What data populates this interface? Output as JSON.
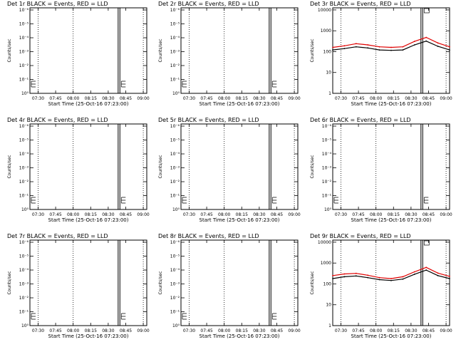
{
  "colors": {
    "events": "#000000",
    "lld": "#e00000",
    "background": "#ffffff"
  },
  "chart_data": [
    {
      "type": "line",
      "title": "Det 1r BLACK = Events, RED = LLD",
      "xlabel": "Start Time (25-Oct-16 07:23:00)",
      "ylabel": "Counts/sec",
      "yscale": "log",
      "xticks": [
        "07:30",
        "07:45",
        "08:00",
        "08:15",
        "08:30",
        "08:45",
        "09:00"
      ],
      "yticks": [
        "10⁰",
        "10⁻¹",
        "10⁻²",
        "10⁻³",
        "10⁻⁴",
        "10⁻⁵",
        "10⁻⁶"
      ],
      "series": []
    },
    {
      "type": "line",
      "title": "Det 2r BLACK = Events, RED = LLD",
      "xlabel": "Start Time (25-Oct-16 07:23:00)",
      "ylabel": "Counts/sec",
      "yscale": "log",
      "xticks": [
        "07:30",
        "07:45",
        "08:00",
        "08:15",
        "08:30",
        "08:45",
        "09:00"
      ],
      "yticks": [
        "10⁰",
        "10⁻¹",
        "10⁻²",
        "10⁻³",
        "10⁻⁴",
        "10⁻⁵",
        "10⁻⁶"
      ],
      "series": []
    },
    {
      "type": "line",
      "title": "Det 3r BLACK = Events, RED = LLD",
      "xlabel": "Start Time (25-Oct-16 07:23:00)",
      "ylabel": "Counts/sec",
      "yscale": "log",
      "xticks": [
        "07:30",
        "07:45",
        "08:00",
        "08:15",
        "08:30",
        "08:45",
        "09:00"
      ],
      "yticks": [
        "1",
        "10",
        "100",
        "1000",
        "10000"
      ],
      "series": [
        {
          "color": "lld",
          "x": [
            0,
            10,
            20,
            30,
            40,
            50,
            60,
            70,
            80,
            90,
            100
          ],
          "y": [
            160,
            190,
            240,
            210,
            170,
            160,
            170,
            310,
            480,
            260,
            170
          ]
        },
        {
          "color": "events",
          "x": [
            0,
            10,
            20,
            30,
            40,
            50,
            60,
            70,
            80,
            90,
            100
          ],
          "y": [
            120,
            140,
            170,
            150,
            120,
            115,
            120,
            210,
            320,
            180,
            120
          ]
        }
      ]
    },
    {
      "type": "line",
      "title": "Det 4r BLACK = Events, RED = LLD",
      "xlabel": "Start Time (25-Oct-16 07:23:00)",
      "ylabel": "Counts/sec",
      "yscale": "log",
      "xticks": [
        "07:30",
        "07:45",
        "08:00",
        "08:15",
        "08:30",
        "08:45",
        "09:00"
      ],
      "yticks": [
        "10⁰",
        "10⁻¹",
        "10⁻²",
        "10⁻³",
        "10⁻⁴",
        "10⁻⁵",
        "10⁻⁶"
      ],
      "series": []
    },
    {
      "type": "line",
      "title": "Det 5r BLACK = Events, RED = LLD",
      "xlabel": "Start Time (25-Oct-16 07:23:00)",
      "ylabel": "Counts/sec",
      "yscale": "log",
      "xticks": [
        "07:30",
        "07:45",
        "08:00",
        "08:15",
        "08:30",
        "08:45",
        "09:00"
      ],
      "yticks": [
        "10⁰",
        "10⁻¹",
        "10⁻²",
        "10⁻³",
        "10⁻⁴",
        "10⁻⁵",
        "10⁻⁶"
      ],
      "series": []
    },
    {
      "type": "line",
      "title": "Det 6r BLACK = Events, RED = LLD",
      "xlabel": "Start Time (25-Oct-16 07:23:00)",
      "ylabel": "Counts/sec",
      "yscale": "log",
      "xticks": [
        "07:30",
        "07:45",
        "08:00",
        "08:15",
        "08:30",
        "08:45",
        "09:00"
      ],
      "yticks": [
        "10⁰",
        "10⁻¹",
        "10⁻²",
        "10⁻³",
        "10⁻⁴",
        "10⁻⁵",
        "10⁻⁶"
      ],
      "series": []
    },
    {
      "type": "line",
      "title": "Det 7r BLACK = Events, RED = LLD",
      "xlabel": "Start Time (25-Oct-16 07:23:00)",
      "ylabel": "Counts/sec",
      "yscale": "log",
      "xticks": [
        "07:30",
        "07:45",
        "08:00",
        "08:15",
        "08:30",
        "08:45",
        "09:00"
      ],
      "yticks": [
        "10⁰",
        "10⁻¹",
        "10⁻²",
        "10⁻³",
        "10⁻⁴",
        "10⁻⁵",
        "10⁻⁶"
      ],
      "series": []
    },
    {
      "type": "line",
      "title": "Det 8r BLACK = Events, RED = LLD",
      "xlabel": "Start Time (25-Oct-16 07:23:00)",
      "ylabel": "Counts/sec",
      "yscale": "log",
      "xticks": [
        "07:30",
        "07:45",
        "08:00",
        "08:15",
        "08:30",
        "08:45",
        "09:00"
      ],
      "yticks": [
        "10⁰",
        "10⁻¹",
        "10⁻²",
        "10⁻³",
        "10⁻⁴",
        "10⁻⁵",
        "10⁻⁶"
      ],
      "series": []
    },
    {
      "type": "line",
      "title": "Det 9r BLACK = Events, RED = LLD",
      "xlabel": "Start Time (25-Oct-16 07:23:00)",
      "ylabel": "Counts/sec",
      "yscale": "log",
      "xticks": [
        "07:30",
        "07:45",
        "08:00",
        "08:15",
        "08:30",
        "08:45",
        "09:00"
      ],
      "yticks": [
        "1",
        "10",
        "100",
        "1000",
        "10000"
      ],
      "series": [
        {
          "color": "lld",
          "x": [
            0,
            10,
            20,
            30,
            40,
            50,
            60,
            70,
            80,
            90,
            100
          ],
          "y": [
            250,
            300,
            320,
            260,
            200,
            180,
            220,
            380,
            620,
            330,
            230
          ]
        },
        {
          "color": "events",
          "x": [
            0,
            10,
            20,
            30,
            40,
            50,
            60,
            70,
            80,
            90,
            100
          ],
          "y": [
            180,
            220,
            240,
            200,
            160,
            145,
            170,
            290,
            460,
            250,
            180
          ]
        }
      ]
    }
  ]
}
